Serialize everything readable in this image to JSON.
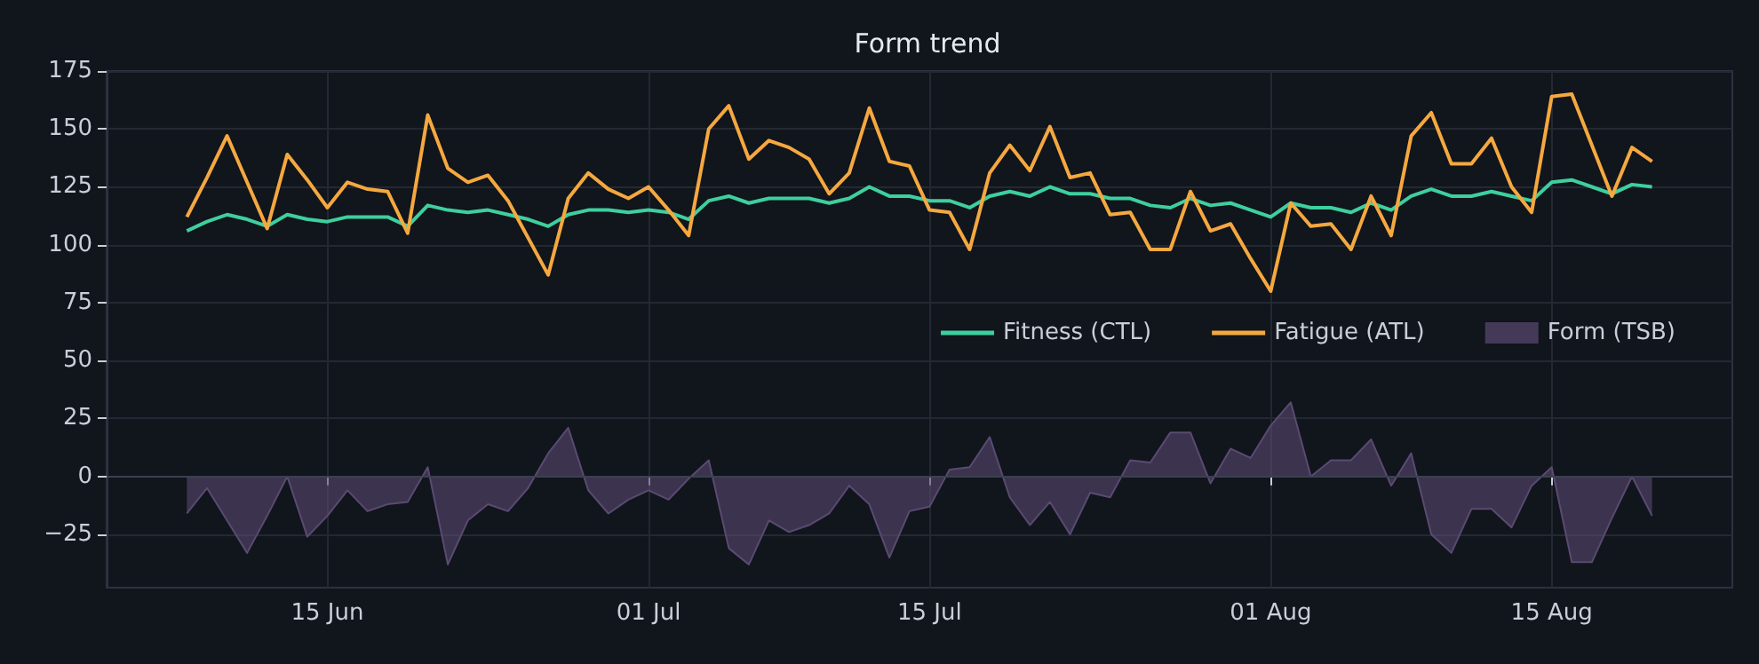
{
  "chart_data": {
    "type": "line",
    "title": "Form trend",
    "x": [
      "--06-08",
      "--06-09",
      "--06-10",
      "--06-11",
      "--06-12",
      "--06-13",
      "--06-14",
      "--06-15",
      "--06-16",
      "--06-17",
      "--06-18",
      "--06-19",
      "--06-20",
      "--06-21",
      "--06-22",
      "--06-23",
      "--06-24",
      "--06-25",
      "--06-26",
      "--06-27",
      "--06-28",
      "--06-29",
      "--06-30",
      "--07-01",
      "--07-02",
      "--07-03",
      "--07-04",
      "--07-05",
      "--07-06",
      "--07-07",
      "--07-08",
      "--07-09",
      "--07-10",
      "--07-11",
      "--07-12",
      "--07-13",
      "--07-14",
      "--07-15",
      "--07-16",
      "--07-17",
      "--07-18",
      "--07-19",
      "--07-20",
      "--07-21",
      "--07-22",
      "--07-23",
      "--07-24",
      "--07-25",
      "--07-26",
      "--07-27",
      "--07-28",
      "--07-29",
      "--07-30",
      "--07-31",
      "--08-01",
      "--08-02",
      "--08-03",
      "--08-04",
      "--08-05",
      "--08-06",
      "--08-07",
      "--08-08",
      "--08-09",
      "--08-10",
      "--08-11",
      "--08-12",
      "--08-13",
      "--08-14",
      "--08-15",
      "--08-16",
      "--08-17",
      "--08-18",
      "--08-19",
      "--08-20"
    ],
    "series": [
      {
        "name": "Fitness (CTL)",
        "color": "#3ecf9e",
        "values": [
          106,
          110,
          113,
          111,
          108,
          113,
          111,
          110,
          112,
          112,
          112,
          108,
          117,
          115,
          114,
          115,
          113,
          111,
          108,
          113,
          115,
          115,
          114,
          115,
          114,
          111,
          119,
          121,
          118,
          120,
          120,
          120,
          118,
          120,
          125,
          121,
          121,
          119,
          119,
          116,
          121,
          123,
          121,
          125,
          122,
          122,
          120,
          120,
          117,
          116,
          120,
          117,
          118,
          115,
          112,
          118,
          116,
          116,
          114,
          118,
          115,
          121,
          124,
          121,
          121,
          123,
          121,
          119,
          127,
          128,
          125,
          122,
          126,
          125
        ]
      },
      {
        "name": "Fatigue (ATL)",
        "color": "#f5a83f",
        "values": [
          112,
          129,
          147,
          127,
          107,
          139,
          128,
          116,
          127,
          124,
          123,
          105,
          156,
          133,
          127,
          130,
          119,
          103,
          87,
          120,
          131,
          124,
          120,
          125,
          115,
          104,
          150,
          160,
          137,
          145,
          142,
          137,
          122,
          131,
          159,
          136,
          134,
          115,
          114,
          98,
          131,
          143,
          132,
          151,
          129,
          131,
          113,
          114,
          98,
          98,
          123,
          106,
          109,
          94,
          80,
          118,
          108,
          109,
          98,
          121,
          104,
          147,
          157,
          135,
          135,
          146,
          125,
          114,
          164,
          165,
          143,
          121,
          142,
          136
        ]
      },
      {
        "name": "Form (TSB)",
        "type": "area",
        "color": "#5a4a72",
        "values": [
          -16,
          -5,
          -19,
          -33,
          -17,
          0,
          -26,
          -17,
          -6,
          -15,
          -12,
          -11,
          4,
          -38,
          -19,
          -12,
          -15,
          -5,
          10,
          21,
          -6,
          -16,
          -10,
          -6,
          -10,
          -1,
          7,
          -31,
          -38,
          -19,
          -24,
          -21,
          -16,
          -4,
          -12,
          -35,
          -15,
          -13,
          3,
          4,
          17,
          -9,
          -21,
          -11,
          -25,
          -7,
          -9,
          7,
          6,
          19,
          19,
          -3,
          12,
          8,
          22,
          32,
          0,
          7,
          7,
          16,
          -4,
          10,
          -25,
          -33,
          -14,
          -14,
          -22,
          -4,
          4,
          -37,
          -37,
          -18,
          0,
          -17
        ]
      }
    ],
    "xlim": [
      "--06-04",
      "--08-24"
    ],
    "xticks": [
      {
        "value": "--06-15",
        "label": "15 Jun"
      },
      {
        "value": "--07-01",
        "label": "01 Jul"
      },
      {
        "value": "--07-15",
        "label": "15 Jul"
      },
      {
        "value": "--08-01",
        "label": "01 Aug"
      },
      {
        "value": "--08-15",
        "label": "15 Aug"
      }
    ],
    "ylim": [
      -48,
      175
    ],
    "yticks": [
      -25,
      0,
      25,
      50,
      75,
      100,
      125,
      150,
      175
    ],
    "grid": true,
    "legend": "right"
  }
}
